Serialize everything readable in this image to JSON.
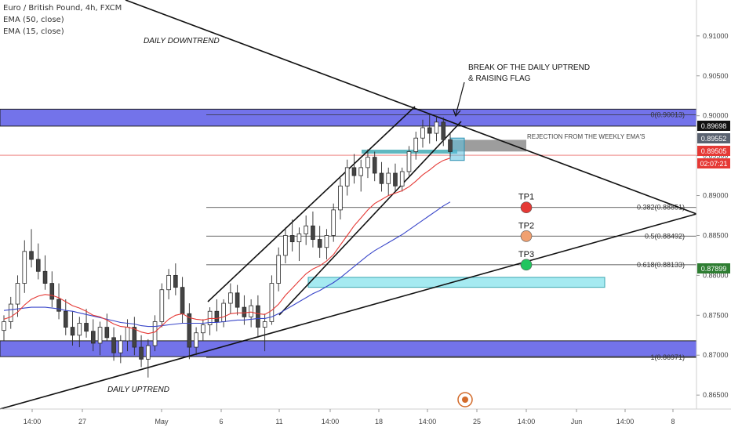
{
  "legend": {
    "symbol_line": "Euro / British Pound, 4h, FXCM",
    "ema50_label": "EMA (50, close)",
    "ema15_label": "EMA (15, close)"
  },
  "chart_data": {
    "type": "candlestick",
    "symbol": "Euro / British Pound",
    "timeframe": "4h",
    "ylim": [
      0.8605,
      0.9145
    ],
    "grid": false,
    "y_ticks": [
      "0.91000",
      "0.90500",
      "0.90000",
      "0.89500",
      "0.89000",
      "0.88500",
      "0.88000",
      "0.87500",
      "0.87000",
      "0.86500"
    ],
    "x_ticks": [
      "14:00",
      "27",
      "May",
      "6",
      "11",
      "14:00",
      "18",
      "14:00",
      "25",
      "14:00",
      "Jun",
      "14:00",
      "8"
    ],
    "price_badges": [
      {
        "value": "0.89698",
        "color": "#111111"
      },
      {
        "value": "0.89552",
        "color": "#5a6270"
      },
      {
        "value": "0.89505",
        "color": "#e53935"
      },
      {
        "value": "02:07:21",
        "color": "#e53935"
      },
      {
        "value": "0.87899",
        "color": "#2e7d32"
      }
    ],
    "annotations": {
      "daily_downtrend": "DAILY DOWNTREND",
      "daily_uptrend": "DAILY UPTREND",
      "break_line1": "BREAK OF THE DAILY UPTREND",
      "break_line2": "& RAISING FLAG",
      "rejection": "REJECTION FROM THE WEEKLY EMA'S",
      "tp1": "TP1",
      "tp2": "TP2",
      "tp3": "TP3"
    },
    "fib_levels": [
      {
        "label": "0(0.90013)",
        "price": 0.90013
      },
      {
        "label": "0.382(0.88851)",
        "price": 0.88851
      },
      {
        "label": "0.5(0.88492)",
        "price": 0.88492
      },
      {
        "label": "0.618(0.88133)",
        "price": 0.88133
      },
      {
        "label": "1(0.86971)",
        "price": 0.86971
      }
    ],
    "targets": [
      {
        "label": "TP1",
        "price": 0.88851,
        "color": "#e53935"
      },
      {
        "label": "TP2",
        "price": 0.88492,
        "color": "#f0a070"
      },
      {
        "label": "TP3",
        "price": 0.88133,
        "color": "#22c55e"
      }
    ],
    "zones": [
      {
        "name": "upper-resistance-zone",
        "top": 0.90082,
        "bottom": 0.8987,
        "color": "#5b5be6"
      },
      {
        "name": "lower-support-zone",
        "top": 0.8718,
        "bottom": 0.86982,
        "color": "#5b5be6"
      },
      {
        "name": "target-zone",
        "top": 0.87975,
        "bottom": 0.8785,
        "color": "#8ee5ee"
      }
    ],
    "position": {
      "entry": 0.89552,
      "stop": 0.89698,
      "target": 0.87899
    },
    "candles": [
      {
        "o": 0.8731,
        "h": 0.875,
        "l": 0.8718,
        "c": 0.8742
      },
      {
        "o": 0.8742,
        "h": 0.8773,
        "l": 0.8733,
        "c": 0.8764
      },
      {
        "o": 0.8764,
        "h": 0.88,
        "l": 0.8748,
        "c": 0.879
      },
      {
        "o": 0.879,
        "h": 0.8844,
        "l": 0.8778,
        "c": 0.883
      },
      {
        "o": 0.883,
        "h": 0.8858,
        "l": 0.881,
        "c": 0.882
      },
      {
        "o": 0.882,
        "h": 0.884,
        "l": 0.8795,
        "c": 0.8805
      },
      {
        "o": 0.8805,
        "h": 0.8825,
        "l": 0.8782,
        "c": 0.879
      },
      {
        "o": 0.879,
        "h": 0.8805,
        "l": 0.876,
        "c": 0.877
      },
      {
        "o": 0.877,
        "h": 0.879,
        "l": 0.8745,
        "c": 0.8755
      },
      {
        "o": 0.8755,
        "h": 0.877,
        "l": 0.8725,
        "c": 0.8735
      },
      {
        "o": 0.8735,
        "h": 0.8755,
        "l": 0.8712,
        "c": 0.8725
      },
      {
        "o": 0.8725,
        "h": 0.8748,
        "l": 0.871,
        "c": 0.874
      },
      {
        "o": 0.874,
        "h": 0.8758,
        "l": 0.8722,
        "c": 0.873
      },
      {
        "o": 0.873,
        "h": 0.8745,
        "l": 0.8705,
        "c": 0.8715
      },
      {
        "o": 0.8715,
        "h": 0.8742,
        "l": 0.87,
        "c": 0.8735
      },
      {
        "o": 0.8735,
        "h": 0.8752,
        "l": 0.8718,
        "c": 0.8722
      },
      {
        "o": 0.8722,
        "h": 0.8735,
        "l": 0.8693,
        "c": 0.8703
      },
      {
        "o": 0.8703,
        "h": 0.8725,
        "l": 0.869,
        "c": 0.8718
      },
      {
        "o": 0.8718,
        "h": 0.8745,
        "l": 0.8705,
        "c": 0.8735
      },
      {
        "o": 0.8735,
        "h": 0.8748,
        "l": 0.87,
        "c": 0.871
      },
      {
        "o": 0.871,
        "h": 0.8725,
        "l": 0.8685,
        "c": 0.8695
      },
      {
        "o": 0.8695,
        "h": 0.872,
        "l": 0.8672,
        "c": 0.8712
      },
      {
        "o": 0.8712,
        "h": 0.875,
        "l": 0.8705,
        "c": 0.8742
      },
      {
        "o": 0.8742,
        "h": 0.879,
        "l": 0.8735,
        "c": 0.8782
      },
      {
        "o": 0.8782,
        "h": 0.8808,
        "l": 0.877,
        "c": 0.88
      },
      {
        "o": 0.88,
        "h": 0.8815,
        "l": 0.8775,
        "c": 0.8785
      },
      {
        "o": 0.8785,
        "h": 0.8798,
        "l": 0.874,
        "c": 0.8752
      },
      {
        "o": 0.8752,
        "h": 0.8765,
        "l": 0.8695,
        "c": 0.871
      },
      {
        "o": 0.871,
        "h": 0.8735,
        "l": 0.87,
        "c": 0.8728
      },
      {
        "o": 0.8728,
        "h": 0.8745,
        "l": 0.8718,
        "c": 0.8738
      },
      {
        "o": 0.8738,
        "h": 0.876,
        "l": 0.8725,
        "c": 0.8755
      },
      {
        "o": 0.8755,
        "h": 0.877,
        "l": 0.873,
        "c": 0.8742
      },
      {
        "o": 0.8742,
        "h": 0.877,
        "l": 0.8735,
        "c": 0.8765
      },
      {
        "o": 0.8765,
        "h": 0.879,
        "l": 0.8752,
        "c": 0.8778
      },
      {
        "o": 0.8778,
        "h": 0.8788,
        "l": 0.875,
        "c": 0.876
      },
      {
        "o": 0.876,
        "h": 0.8775,
        "l": 0.8738,
        "c": 0.8748
      },
      {
        "o": 0.8748,
        "h": 0.877,
        "l": 0.8735,
        "c": 0.8762
      },
      {
        "o": 0.8762,
        "h": 0.8775,
        "l": 0.8722,
        "c": 0.8735
      },
      {
        "o": 0.8735,
        "h": 0.8752,
        "l": 0.8705,
        "c": 0.8742
      },
      {
        "o": 0.8742,
        "h": 0.88,
        "l": 0.8738,
        "c": 0.879
      },
      {
        "o": 0.879,
        "h": 0.8835,
        "l": 0.878,
        "c": 0.8825
      },
      {
        "o": 0.8825,
        "h": 0.886,
        "l": 0.8815,
        "c": 0.885
      },
      {
        "o": 0.885,
        "h": 0.887,
        "l": 0.883,
        "c": 0.8842
      },
      {
        "o": 0.8842,
        "h": 0.886,
        "l": 0.8818,
        "c": 0.8852
      },
      {
        "o": 0.8852,
        "h": 0.8875,
        "l": 0.8838,
        "c": 0.8862
      },
      {
        "o": 0.8862,
        "h": 0.888,
        "l": 0.8835,
        "c": 0.8845
      },
      {
        "o": 0.8845,
        "h": 0.8862,
        "l": 0.8822,
        "c": 0.8835
      },
      {
        "o": 0.8835,
        "h": 0.8858,
        "l": 0.882,
        "c": 0.885
      },
      {
        "o": 0.885,
        "h": 0.889,
        "l": 0.8842,
        "c": 0.8882
      },
      {
        "o": 0.8882,
        "h": 0.8922,
        "l": 0.887,
        "c": 0.8912
      },
      {
        "o": 0.8912,
        "h": 0.8945,
        "l": 0.89,
        "c": 0.8935
      },
      {
        "o": 0.8935,
        "h": 0.8952,
        "l": 0.8915,
        "c": 0.8925
      },
      {
        "o": 0.8925,
        "h": 0.8945,
        "l": 0.8905,
        "c": 0.8935
      },
      {
        "o": 0.8935,
        "h": 0.8958,
        "l": 0.8922,
        "c": 0.8948
      },
      {
        "o": 0.8948,
        "h": 0.8955,
        "l": 0.8918,
        "c": 0.8928
      },
      {
        "o": 0.8928,
        "h": 0.8942,
        "l": 0.8905,
        "c": 0.8915
      },
      {
        "o": 0.8915,
        "h": 0.8935,
        "l": 0.89,
        "c": 0.8928
      },
      {
        "o": 0.8928,
        "h": 0.894,
        "l": 0.8905,
        "c": 0.8912
      },
      {
        "o": 0.8912,
        "h": 0.8935,
        "l": 0.8905,
        "c": 0.893
      },
      {
        "o": 0.893,
        "h": 0.8962,
        "l": 0.8925,
        "c": 0.8955
      },
      {
        "o": 0.8955,
        "h": 0.898,
        "l": 0.8945,
        "c": 0.8972
      },
      {
        "o": 0.8972,
        "h": 0.8995,
        "l": 0.896,
        "c": 0.8985
      },
      {
        "o": 0.8985,
        "h": 0.9002,
        "l": 0.8965,
        "c": 0.8978
      },
      {
        "o": 0.8978,
        "h": 0.9,
        "l": 0.8968,
        "c": 0.8992
      },
      {
        "o": 0.8992,
        "h": 0.8998,
        "l": 0.8962,
        "c": 0.897
      },
      {
        "o": 0.897,
        "h": 0.8978,
        "l": 0.8948,
        "c": 0.8955
      }
    ],
    "ema15": [
      0.8745,
      0.8748,
      0.8754,
      0.8763,
      0.877,
      0.8774,
      0.8776,
      0.8775,
      0.8772,
      0.8767,
      0.8762,
      0.8759,
      0.8755,
      0.875,
      0.8748,
      0.8744,
      0.8739,
      0.8736,
      0.8735,
      0.8733,
      0.8729,
      0.8727,
      0.8729,
      0.8737,
      0.8745,
      0.875,
      0.8752,
      0.8747,
      0.8745,
      0.8744,
      0.8746,
      0.8746,
      0.8748,
      0.8752,
      0.8753,
      0.8753,
      0.8754,
      0.8752,
      0.8751,
      0.8756,
      0.8764,
      0.8775,
      0.8784,
      0.8793,
      0.8802,
      0.8808,
      0.8812,
      0.8818,
      0.8826,
      0.8838,
      0.885,
      0.8862,
      0.8872,
      0.8882,
      0.889,
      0.8895,
      0.89,
      0.8903,
      0.8906,
      0.8911,
      0.8918,
      0.8926,
      0.8932,
      0.8939,
      0.8944,
      0.8947
    ],
    "ema50": [
      0.8756,
      0.8757,
      0.8758,
      0.8759,
      0.876,
      0.876,
      0.876,
      0.8759,
      0.8758,
      0.8756,
      0.8755,
      0.8753,
      0.8751,
      0.8749,
      0.8747,
      0.8745,
      0.8743,
      0.8741,
      0.874,
      0.8739,
      0.8737,
      0.8736,
      0.8736,
      0.8737,
      0.8738,
      0.8739,
      0.874,
      0.874,
      0.874,
      0.874,
      0.8741,
      0.8741,
      0.8742,
      0.8743,
      0.8744,
      0.8744,
      0.8745,
      0.8746,
      0.8746,
      0.8748,
      0.8752,
      0.8757,
      0.8762,
      0.8767,
      0.8772,
      0.8777,
      0.8781,
      0.8786,
      0.8791,
      0.8797,
      0.8804,
      0.8811,
      0.8818,
      0.8825,
      0.8831,
      0.8836,
      0.8841,
      0.8846,
      0.8851,
      0.8857,
      0.8863,
      0.8869,
      0.8875,
      0.8881,
      0.8887,
      0.8892
    ]
  }
}
